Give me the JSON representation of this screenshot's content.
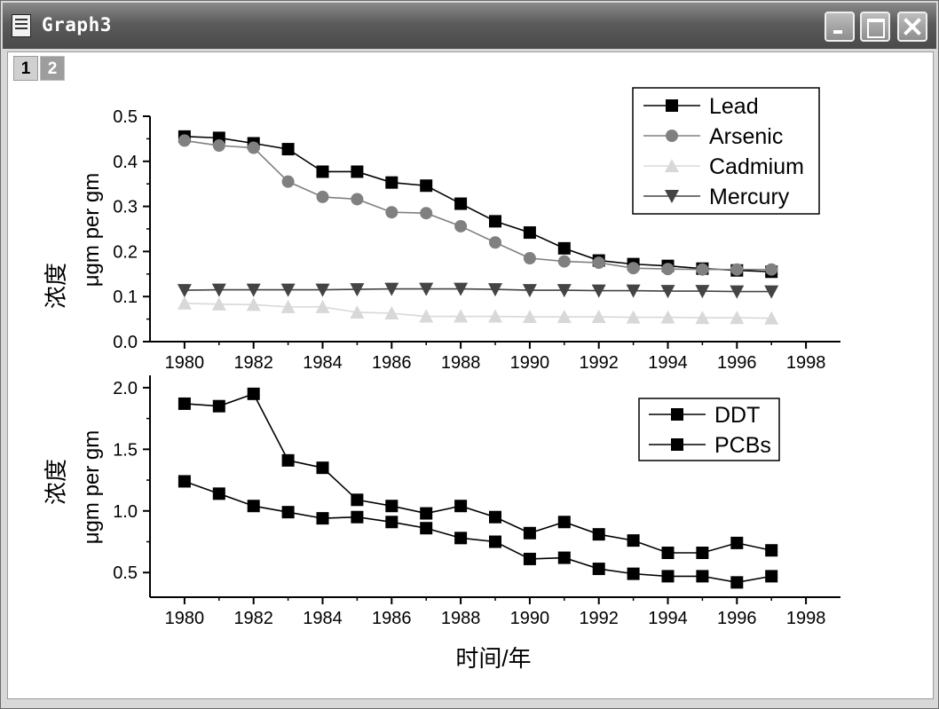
{
  "window": {
    "title": "Graph3"
  },
  "layer_tabs": [
    "1",
    "2"
  ],
  "chart_data": [
    {
      "type": "line",
      "x": [
        1980,
        1981,
        1982,
        1983,
        1984,
        1985,
        1986,
        1987,
        1988,
        1989,
        1990,
        1991,
        1992,
        1993,
        1994,
        1995,
        1996,
        1997
      ],
      "xlim": [
        1979,
        1999
      ],
      "xticks": [
        "1980",
        "1982",
        "1984",
        "1986",
        "1988",
        "1990",
        "1992",
        "1994",
        "1996",
        "1998"
      ],
      "ylim": [
        0.0,
        0.5
      ],
      "yticks": [
        "0.0",
        "0.1",
        "0.2",
        "0.3",
        "0.4",
        "0.5"
      ],
      "ylabel_cn": "浓度",
      "ylabel": "μgm per gm",
      "legend_position": "top-right",
      "series": [
        {
          "name": "Lead",
          "color": "#000000",
          "marker": "square",
          "values": [
            0.455,
            0.452,
            0.44,
            0.427,
            0.377,
            0.377,
            0.353,
            0.346,
            0.306,
            0.267,
            0.242,
            0.207,
            0.18,
            0.172,
            0.168,
            0.162,
            0.158,
            0.155
          ]
        },
        {
          "name": "Arsenic",
          "color": "#808080",
          "marker": "circle",
          "values": [
            0.446,
            0.435,
            0.43,
            0.355,
            0.321,
            0.316,
            0.287,
            0.285,
            0.256,
            0.22,
            0.185,
            0.178,
            0.175,
            0.163,
            0.161,
            0.16,
            0.16,
            0.16
          ]
        },
        {
          "name": "Cadmium",
          "color": "#d8d8d8",
          "marker": "triangle-up",
          "values": [
            0.085,
            0.083,
            0.082,
            0.077,
            0.077,
            0.065,
            0.063,
            0.056,
            0.056,
            0.056,
            0.055,
            0.055,
            0.055,
            0.054,
            0.054,
            0.053,
            0.053,
            0.052
          ]
        },
        {
          "name": "Mercury",
          "color": "#444444",
          "marker": "triangle-down",
          "values": [
            0.114,
            0.115,
            0.115,
            0.115,
            0.115,
            0.116,
            0.117,
            0.117,
            0.117,
            0.116,
            0.114,
            0.114,
            0.113,
            0.113,
            0.112,
            0.112,
            0.111,
            0.111
          ]
        }
      ]
    },
    {
      "type": "line",
      "x": [
        1980,
        1981,
        1982,
        1983,
        1984,
        1985,
        1986,
        1987,
        1988,
        1989,
        1990,
        1991,
        1992,
        1993,
        1994,
        1995,
        1996,
        1997
      ],
      "xlim": [
        1979,
        1999
      ],
      "xticks": [
        "1980",
        "1982",
        "1984",
        "1986",
        "1988",
        "1990",
        "1992",
        "1994",
        "1996",
        "1998"
      ],
      "ylim": [
        0.3,
        2.1
      ],
      "yticks": [
        "0.5",
        "1.0",
        "1.5",
        "2.0"
      ],
      "ylabel_cn": "浓度",
      "ylabel": "μgm per gm",
      "xlabel": "时间/年",
      "legend_position": "top-right",
      "series": [
        {
          "name": "DDT",
          "color": "#000000",
          "marker": "square",
          "values": [
            1.87,
            1.85,
            1.95,
            1.41,
            1.35,
            1.09,
            1.04,
            0.98,
            1.04,
            0.95,
            0.82,
            0.91,
            0.81,
            0.76,
            0.66,
            0.66,
            0.74,
            0.68
          ]
        },
        {
          "name": "PCBs",
          "color": "#000000",
          "marker": "square",
          "values": [
            1.24,
            1.14,
            1.04,
            0.99,
            0.94,
            0.95,
            0.91,
            0.86,
            0.78,
            0.75,
            0.61,
            0.62,
            0.53,
            0.49,
            0.47,
            0.47,
            0.42,
            0.47
          ]
        }
      ]
    }
  ]
}
